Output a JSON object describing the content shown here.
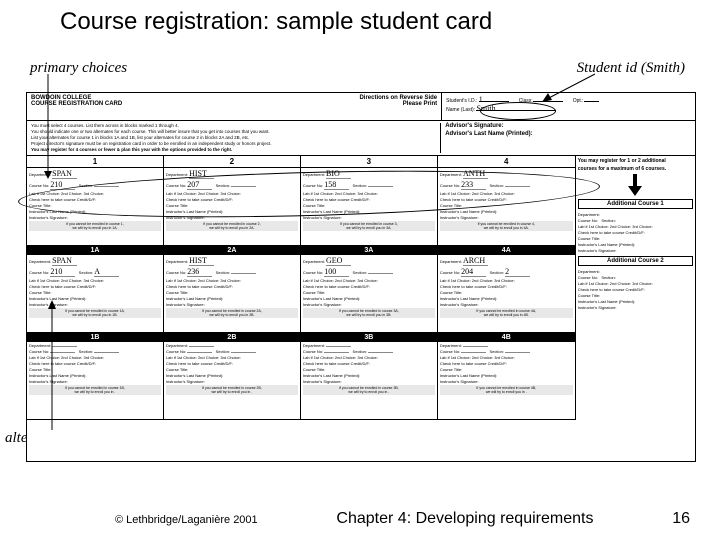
{
  "title": "Course registration: sample student card",
  "annotations": {
    "primary": "primary choices",
    "studentid": "Student id (Smith)",
    "alternates": "alternates"
  },
  "footer": {
    "copyright": "© Lethbridge/Laganière 2001",
    "chapter": "Chapter 4: Developing requirements",
    "page": "16"
  },
  "card": {
    "college": "BOWDOIN COLLEGE",
    "directions": "Directions on Reverse Side",
    "formname": "COURSE REGISTRATION CARD",
    "pleaseprint": "Please Print",
    "sid_label": "Student's I.D.:",
    "sid_value": "1",
    "class_label": "Class:",
    "opt_label": "Opt.:",
    "lastname_label": "Name (Last):",
    "lastname_value": "Smith",
    "advisor_sig": "Advisor's Signature:",
    "advisor_name": "Advisor's Last Name (Printed):",
    "inst1": "You must select 4 courses. List them across in blocks marked 1 through 4.",
    "inst2": "You should indicate one or two alternates for each course. This will better insure that you get into courses that you want.",
    "inst3": "List your alternates for course 1 in blocks 1A and 1B, list your alternates for course 2 in blocks 2A and 2B, etc.",
    "inst4": "Project director's signature must be on registration card in order to be enrolled in an independent study or honors project.",
    "inst5": "You may register for 4 courses or fewer & plan this year with the options provided to the right.",
    "side_msg1": "You may register for 1 or 2 additional",
    "side_msg2": "courses for a maximum of 6 courses.",
    "addl1": "Additional Course 1",
    "addl2": "Additional Course 2",
    "cols": [
      "1",
      "2",
      "3",
      "4"
    ],
    "sub_labels": [
      "1A",
      "2A",
      "3A",
      "4A",
      "1B",
      "2B",
      "3B",
      "4B"
    ],
    "primary_depts": [
      "SPAN",
      "HIST",
      "BIO",
      "ANTH"
    ],
    "primary_nums": [
      "210",
      "207",
      "158",
      "233"
    ],
    "alt_depts": [
      "SPAN",
      "HIST",
      "GEO",
      "ARCH"
    ],
    "alt_nums": [
      "210",
      "236",
      "100",
      "204"
    ],
    "alt_extra": [
      "A",
      "",
      "",
      "2"
    ],
    "field_dept": "Department:",
    "field_course": "Course No:",
    "field_section": "Section:",
    "field_lab": "Lab if 1st Choice:  2nd Choice:  3rd Choice:",
    "field_credit": "Check here to take course Credit/D/F:",
    "field_title": "Course Title:",
    "field_instname": "Instructor's Last Name (Printed):",
    "field_instsig": "Instructor's Signature:",
    "note_enroll": "If you cannot be enrolled in course",
    "note_try": "we will try to enroll you in"
  },
  "colors": {
    "text": "#000000",
    "bg": "#ffffff",
    "gray": "#888888"
  }
}
